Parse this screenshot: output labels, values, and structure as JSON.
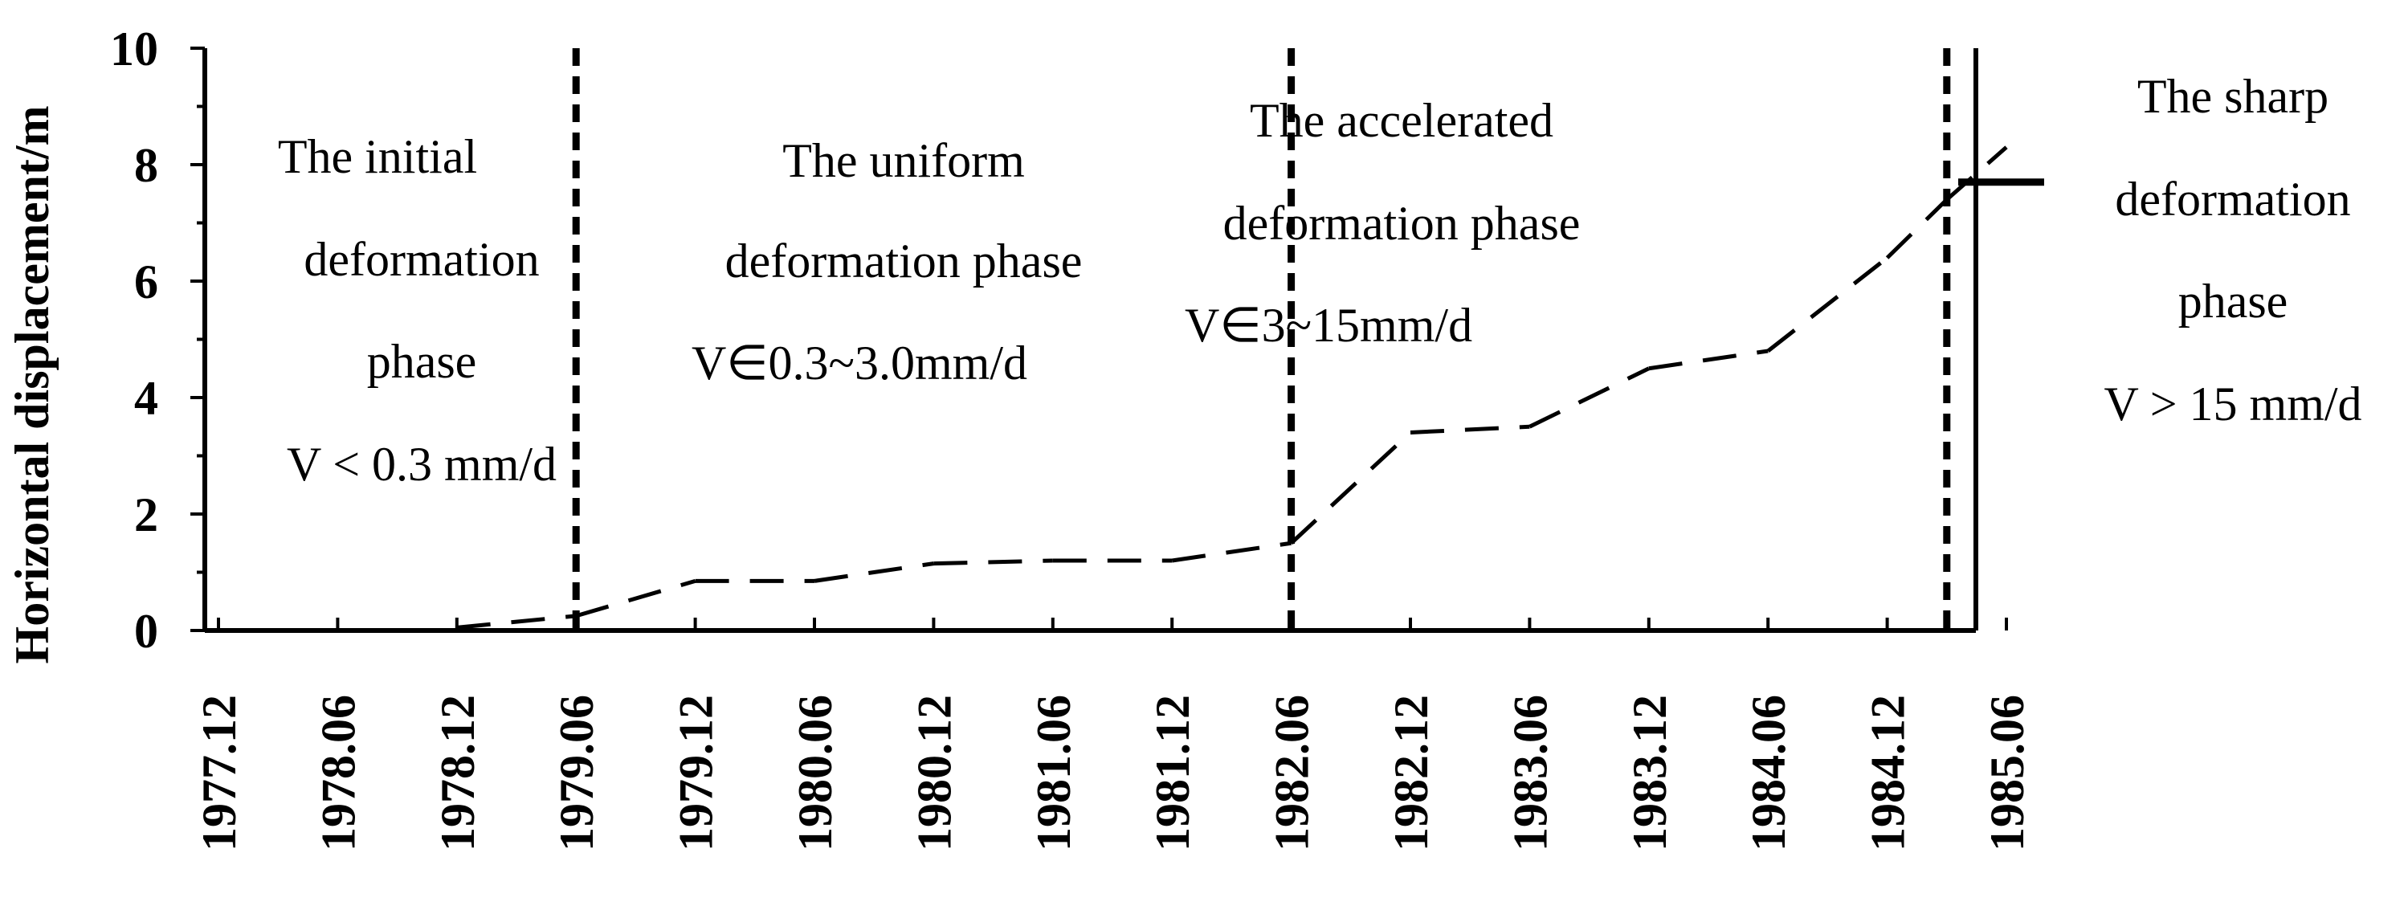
{
  "chart_data": {
    "type": "line",
    "ylabel": "Horizontal displacement/m",
    "xlabel": "",
    "title": "",
    "ylim": [
      0,
      10
    ],
    "y_ticks": [
      0,
      2,
      4,
      6,
      8,
      10
    ],
    "x_tick_labels": [
      "1977.12",
      "1978.06",
      "1978.12",
      "1979.06",
      "1979.12",
      "1980.06",
      "1980.12",
      "1981.06",
      "1981.12",
      "1982.06",
      "1982.12",
      "1983.06",
      "1983.12",
      "1984.06",
      "1984.12",
      "1985.06"
    ],
    "grid": false,
    "series": [
      {
        "style": "dashed",
        "color": "#000000",
        "points": [
          {
            "x": "1978.12",
            "y": 0.05
          },
          {
            "x": "1979.06",
            "y": 0.25
          },
          {
            "x": "1979.12",
            "y": 0.85
          },
          {
            "x": "1980.06",
            "y": 0.85
          },
          {
            "x": "1980.12",
            "y": 1.15
          },
          {
            "x": "1981.06",
            "y": 1.2
          },
          {
            "x": "1981.12",
            "y": 1.2
          },
          {
            "x": "1982.06",
            "y": 1.5
          },
          {
            "x": "1982.12",
            "y": 3.4
          },
          {
            "x": "1983.06",
            "y": 3.5
          },
          {
            "x": "1983.12",
            "y": 4.5
          },
          {
            "x": "1984.06",
            "y": 4.8
          },
          {
            "x": "1984.12",
            "y": 6.4
          },
          {
            "x": "1985.03",
            "y": 7.4
          },
          {
            "x": "1985.06",
            "y": 8.3
          }
        ]
      }
    ],
    "phase_dividers": [
      "1979.06",
      "1982.06",
      "1985.03"
    ],
    "phases": [
      {
        "lines": [
          "The initial",
          "deformation",
          "phase",
          "V < 0.3 mm/d"
        ]
      },
      {
        "lines": [
          "The uniform",
          "deformation phase",
          "V∈0.3~3.0mm/d"
        ]
      },
      {
        "lines": [
          "The accelerated",
          "deformation phase",
          "V∈3~15mm/d"
        ]
      },
      {
        "lines": [
          "The sharp",
          "deformation",
          "phase",
          "V > 15 mm/d"
        ]
      }
    ]
  }
}
